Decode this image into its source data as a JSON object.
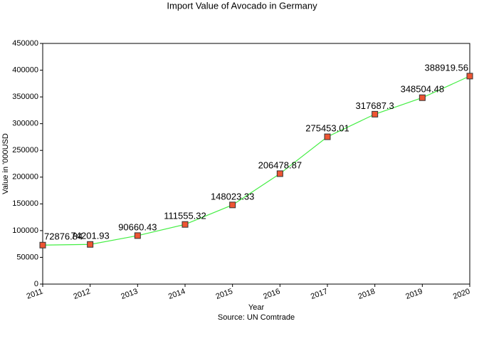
{
  "chart_data": {
    "type": "line",
    "title": "Import Value of Avocado in Germany",
    "x_label": "Year",
    "y_label": "Value in '000USD",
    "source": "Source: UN Comtrade",
    "x": [
      2011,
      2012,
      2013,
      2014,
      2015,
      2016,
      2017,
      2018,
      2019,
      2020
    ],
    "series": [
      {
        "name": "Import Value",
        "color": "#44ee44",
        "marker_color": "#ee5533",
        "values": [
          72876.84,
          74201.93,
          90660.43,
          111555.32,
          148023.33,
          206478.87,
          275453.01,
          317687.3,
          348504.48,
          388919.56
        ]
      }
    ],
    "xlim": [
      2011,
      2020
    ],
    "xticks": [
      2011,
      2012,
      2013,
      2014,
      2015,
      2016,
      2017,
      2018,
      2019,
      2020
    ],
    "ylim": [
      0,
      450000
    ],
    "yticks": [
      0,
      50000,
      100000,
      150000,
      200000,
      250000,
      300000,
      350000,
      400000,
      450000
    ]
  }
}
